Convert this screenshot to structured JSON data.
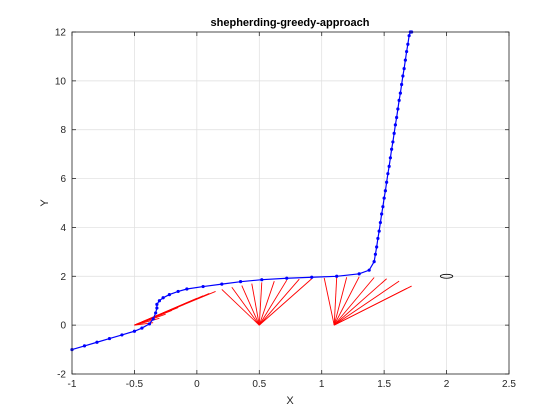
{
  "chart_data": {
    "type": "line",
    "title": "shepherding-greedy-approach",
    "xlabel": "X",
    "ylabel": "Y",
    "xlim": [
      -1,
      2.5
    ],
    "ylim": [
      -2,
      12
    ],
    "x_ticks": [
      -1,
      -0.5,
      0,
      0.5,
      1,
      1.5,
      2,
      2.5
    ],
    "y_ticks": [
      -2,
      0,
      2,
      4,
      6,
      8,
      10,
      12
    ],
    "x_tick_labels": [
      "-1",
      "-0.5",
      "0",
      "0.5",
      "1",
      "1.5",
      "2",
      "2.5"
    ],
    "y_tick_labels": [
      "-2",
      "0",
      "2",
      "4",
      "6",
      "8",
      "10",
      "12"
    ],
    "grid": true,
    "legend": false,
    "series": [
      {
        "marker": "dot",
        "color": "#0000ff",
        "x": [
          -1.0,
          -0.9,
          -0.8,
          -0.7,
          -0.6,
          -0.5,
          -0.44,
          -0.38,
          -0.35,
          -0.33,
          -0.32,
          -0.32,
          -0.3,
          -0.27,
          -0.22,
          -0.15,
          -0.08,
          0.05,
          0.2,
          0.35,
          0.52,
          0.72,
          0.92,
          1.12,
          1.3,
          1.38,
          1.42,
          1.43,
          1.44,
          1.45,
          1.46,
          1.47,
          1.48,
          1.49,
          1.5,
          1.51,
          1.52,
          1.53,
          1.54,
          1.55,
          1.56,
          1.57,
          1.58,
          1.59,
          1.6,
          1.61,
          1.62,
          1.63,
          1.64,
          1.65,
          1.66,
          1.67,
          1.68,
          1.69,
          1.7,
          1.71,
          1.72
        ],
        "y": [
          -1.0,
          -0.85,
          -0.7,
          -0.55,
          -0.4,
          -0.25,
          -0.12,
          0.05,
          0.25,
          0.5,
          0.7,
          0.85,
          1.0,
          1.12,
          1.25,
          1.38,
          1.48,
          1.58,
          1.68,
          1.78,
          1.86,
          1.92,
          1.96,
          2.0,
          2.1,
          2.25,
          2.6,
          2.9,
          3.2,
          3.55,
          3.85,
          4.2,
          4.55,
          4.85,
          5.2,
          5.5,
          5.85,
          6.2,
          6.5,
          6.85,
          7.2,
          7.5,
          7.85,
          8.2,
          8.5,
          8.85,
          9.2,
          9.5,
          9.85,
          10.2,
          10.5,
          10.85,
          11.2,
          11.5,
          11.85,
          12.0,
          12.0
        ]
      }
    ],
    "segments": {
      "color": "#ff0000",
      "hubs": [
        [
          -0.5,
          0.0
        ],
        [
          0.5,
          0.0
        ],
        [
          1.1,
          0.0
        ]
      ],
      "targets": [
        [
          [
            -0.35,
            0.1
          ],
          [
            -0.3,
            0.28
          ],
          [
            -0.25,
            0.45
          ],
          [
            -0.2,
            0.6
          ],
          [
            -0.15,
            0.72
          ],
          [
            -0.1,
            0.85
          ],
          [
            -0.05,
            0.98
          ],
          [
            0.0,
            1.1
          ],
          [
            0.05,
            1.2
          ],
          [
            0.1,
            1.3
          ],
          [
            0.15,
            1.38
          ]
        ],
        [
          [
            0.2,
            1.46
          ],
          [
            0.28,
            1.55
          ],
          [
            0.36,
            1.62
          ],
          [
            0.44,
            1.7
          ],
          [
            0.52,
            1.75
          ],
          [
            0.62,
            1.8
          ],
          [
            0.72,
            1.84
          ],
          [
            0.82,
            1.88
          ],
          [
            0.92,
            1.9
          ]
        ],
        [
          [
            1.02,
            1.93
          ],
          [
            1.12,
            1.95
          ],
          [
            1.2,
            1.96
          ],
          [
            1.3,
            1.98
          ],
          [
            1.42,
            1.95
          ],
          [
            1.52,
            1.9
          ],
          [
            1.62,
            1.8
          ],
          [
            1.72,
            1.6
          ],
          [
            1.68,
            1.5
          ]
        ]
      ]
    },
    "ellipse": {
      "cx": 2.0,
      "cy": 2.0,
      "rx": 0.05,
      "ry": 0.08,
      "color": "#000000"
    }
  }
}
